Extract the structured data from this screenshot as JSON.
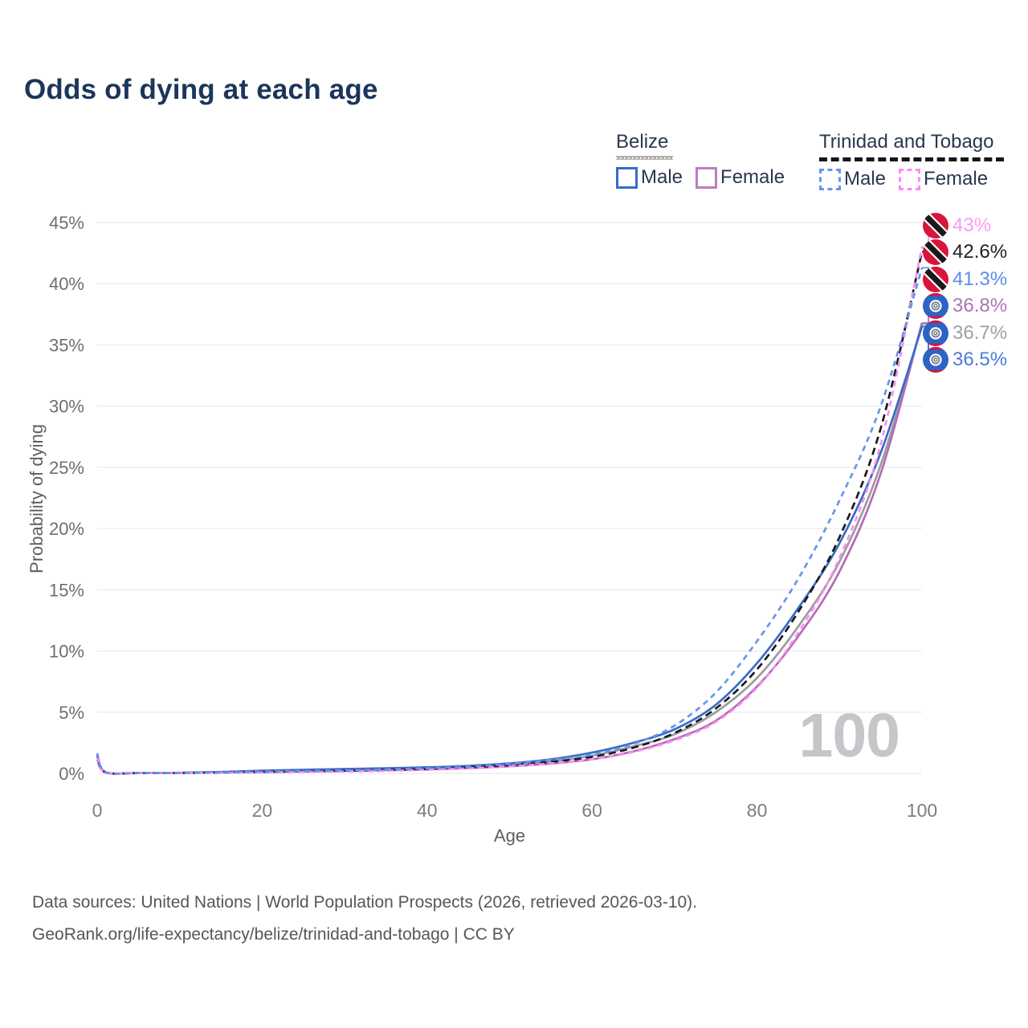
{
  "header": {
    "title": "Odds of dying at each age"
  },
  "legend": {
    "belize": {
      "title": "Belize",
      "male": "Male",
      "female": "Female"
    },
    "trinidad": {
      "title": "Trinidad and Tobago",
      "male": "Male",
      "female": "Female"
    }
  },
  "watermark": "100",
  "footer": {
    "line1": "Data sources: United Nations | World Population Prospects (2026, retrieved 2026-03-10).",
    "line2": "GeoRank.org/life-expectancy/belize/trinidad-and-tobago | CC BY"
  },
  "chart_data": {
    "type": "line",
    "title": "Odds of dying at each age",
    "xlabel": "Age",
    "ylabel": "Probability of dying",
    "xlim": [
      0,
      100
    ],
    "ylim": [
      0,
      45
    ],
    "x_ticks": [
      0,
      20,
      40,
      60,
      80,
      100
    ],
    "y_ticks": [
      0,
      5,
      10,
      15,
      20,
      25,
      30,
      35,
      40,
      45
    ],
    "y_tick_suffix": "%",
    "grid": "horizontal",
    "legend_position": "top-right",
    "ages": [
      0,
      1,
      5,
      10,
      15,
      20,
      25,
      30,
      35,
      40,
      45,
      50,
      55,
      60,
      65,
      70,
      75,
      80,
      85,
      90,
      95,
      100
    ],
    "series": [
      {
        "name": "Belize Total",
        "country": "Belize",
        "sex": "total",
        "style": "solid",
        "color": "#9c9ca0",
        "label_color": "#9da1a6",
        "flag": "bz",
        "end_label": "36.7%",
        "values": [
          1.3,
          0.09,
          0.03,
          0.045,
          0.1,
          0.18,
          0.24,
          0.29,
          0.34,
          0.42,
          0.53,
          0.7,
          0.98,
          1.45,
          2.2,
          3.2,
          5.0,
          7.8,
          12.0,
          17.3,
          25.2,
          36.7
        ]
      },
      {
        "name": "Belize Female",
        "country": "Belize",
        "sex": "female",
        "style": "solid",
        "color": "#b46cb6",
        "label_color": "#ab74b2",
        "flag": "bz",
        "end_label": "36.8%",
        "values": [
          1.15,
          0.08,
          0.025,
          0.04,
          0.07,
          0.12,
          0.16,
          0.2,
          0.26,
          0.33,
          0.43,
          0.58,
          0.8,
          1.15,
          1.8,
          2.8,
          4.3,
          7.1,
          11.2,
          16.5,
          24.5,
          36.8
        ]
      },
      {
        "name": "Belize Male",
        "country": "Belize",
        "sex": "male",
        "style": "solid",
        "color": "#3a6bc7",
        "label_color": "#4b7bdc",
        "flag": "bz",
        "end_label": "36.5%",
        "values": [
          1.45,
          0.1,
          0.035,
          0.05,
          0.12,
          0.22,
          0.3,
          0.36,
          0.42,
          0.5,
          0.62,
          0.82,
          1.15,
          1.7,
          2.5,
          3.6,
          5.6,
          9.0,
          13.5,
          18.8,
          26.2,
          36.5
        ]
      },
      {
        "name": "Trinidad and Tobago Total",
        "country": "Trinidad and Tobago",
        "sex": "total",
        "style": "dashed",
        "color": "#1b1b1e",
        "label_color": "#212124",
        "flag": "tt",
        "end_label": "42.6%",
        "values": [
          1.5,
          0.1,
          0.03,
          0.04,
          0.07,
          0.12,
          0.17,
          0.22,
          0.28,
          0.37,
          0.5,
          0.68,
          0.95,
          1.35,
          2.1,
          3.3,
          5.3,
          8.5,
          13.2,
          19.3,
          28.2,
          42.6
        ]
      },
      {
        "name": "Trinidad and Tobago Female",
        "country": "Trinidad and Tobago",
        "sex": "female",
        "style": "dashed",
        "color": "#fb8cf4",
        "label_color": "#fb9cf1",
        "flag": "tt",
        "end_label": "43%",
        "values": [
          1.35,
          0.09,
          0.025,
          0.035,
          0.05,
          0.08,
          0.12,
          0.16,
          0.21,
          0.3,
          0.42,
          0.58,
          0.82,
          1.15,
          1.75,
          2.7,
          4.2,
          7.0,
          11.5,
          17.6,
          26.9,
          43.0
        ]
      },
      {
        "name": "Trinidad and Tobago Male",
        "country": "Trinidad and Tobago",
        "sex": "male",
        "style": "dashed",
        "color": "#6695ee",
        "label_color": "#5b8cec",
        "flag": "tt",
        "end_label": "41.3%",
        "values": [
          1.65,
          0.12,
          0.04,
          0.045,
          0.08,
          0.15,
          0.2,
          0.25,
          0.32,
          0.42,
          0.55,
          0.78,
          1.1,
          1.55,
          2.4,
          3.9,
          6.6,
          10.8,
          15.9,
          22.3,
          30.0,
          41.3
        ]
      }
    ]
  }
}
